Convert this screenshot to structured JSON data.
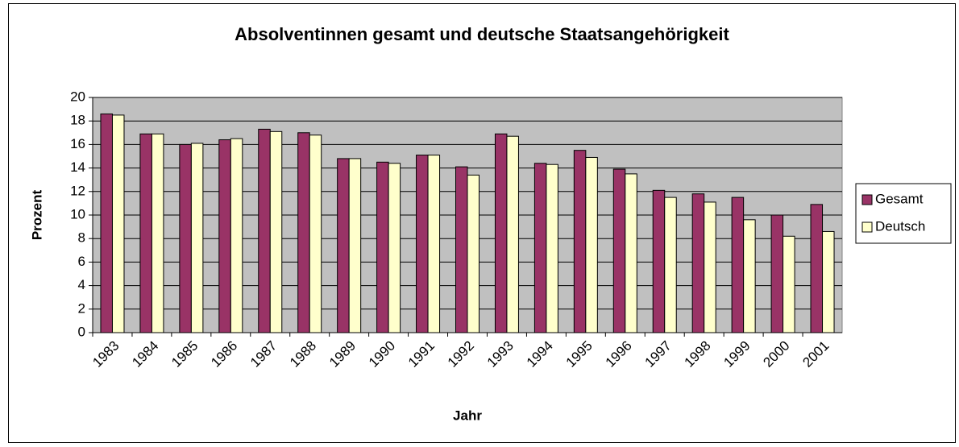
{
  "chart_data": {
    "type": "bar",
    "title": "Absolventinnen gesamt und deutsche Staatsangehörigkeit",
    "x_label": "Jahr",
    "y_label": "Prozent",
    "categories": [
      "1983",
      "1984",
      "1985",
      "1986",
      "1987",
      "1988",
      "1989",
      "1990",
      "1991",
      "1992",
      "1993",
      "1994",
      "1995",
      "1996",
      "1997",
      "1998",
      "1999",
      "2000",
      "2001"
    ],
    "series": [
      {
        "name": "Gesamt",
        "color": "#993366",
        "values": [
          18.6,
          16.9,
          16.0,
          16.4,
          17.3,
          17.0,
          14.8,
          14.5,
          15.1,
          14.1,
          16.9,
          14.4,
          15.5,
          13.9,
          12.1,
          11.8,
          11.5,
          10.0,
          10.9
        ]
      },
      {
        "name": "Deutsch",
        "color": "#ffffcc",
        "values": [
          18.5,
          16.9,
          16.1,
          16.5,
          17.1,
          16.8,
          14.8,
          14.4,
          15.1,
          13.4,
          16.7,
          14.3,
          14.9,
          13.5,
          11.5,
          11.1,
          9.6,
          8.2,
          8.6
        ]
      }
    ],
    "ylim": [
      0,
      20
    ],
    "yticks": [
      0,
      2,
      4,
      6,
      8,
      10,
      12,
      14,
      16,
      18,
      20
    ],
    "grid": true,
    "legend": "right",
    "plot_background": "#c0c0c0"
  }
}
